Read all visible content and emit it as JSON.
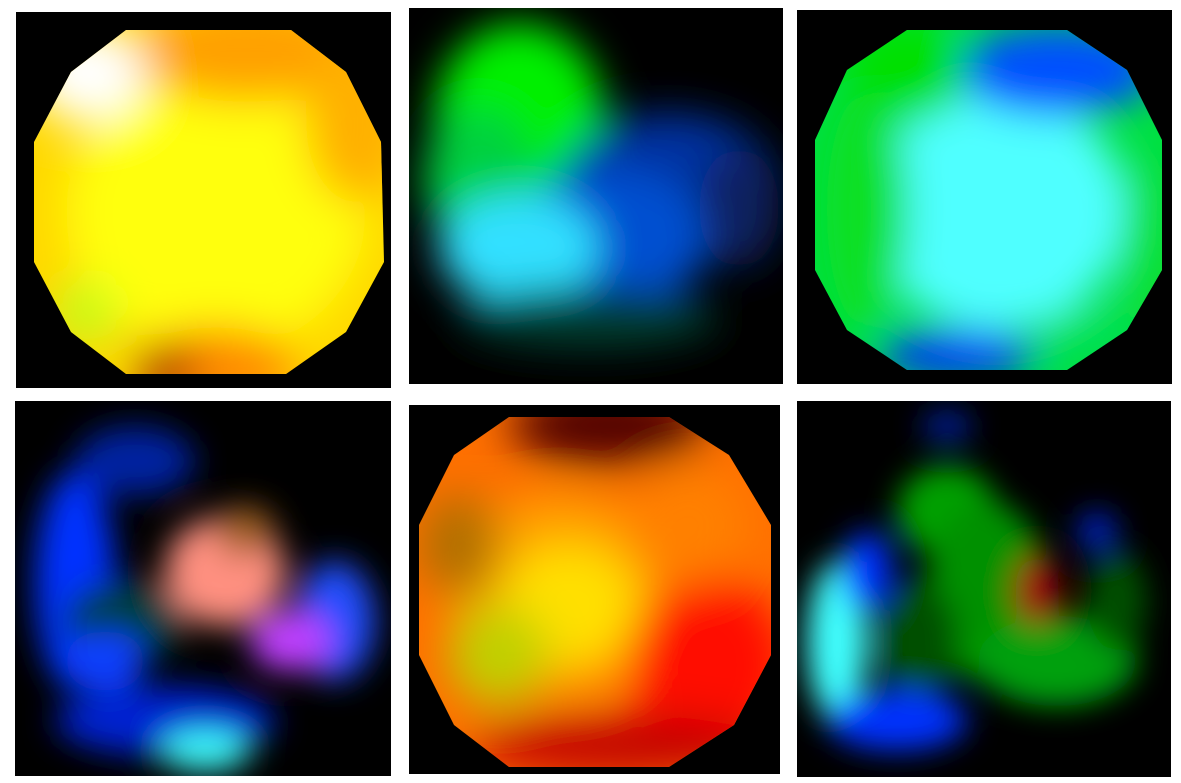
{
  "figure": {
    "background_color": "#ffffff",
    "panel_background": "#000000",
    "panels": [
      {
        "id": "p1",
        "dominant_colors": [
          "#ffff00",
          "#ffa000",
          "#ffffff"
        ]
      },
      {
        "id": "p2",
        "dominant_colors": [
          "#00ff00",
          "#0040c0",
          "#30d0ff"
        ]
      },
      {
        "id": "p3",
        "dominant_colors": [
          "#00ff00",
          "#40ffff",
          "#0030ff"
        ]
      },
      {
        "id": "p4",
        "dominant_colors": [
          "#0030ff",
          "#ff8080",
          "#c040ff",
          "#40ffff"
        ]
      },
      {
        "id": "p5",
        "dominant_colors": [
          "#ff9000",
          "#ffd000",
          "#ff0000"
        ]
      },
      {
        "id": "p6",
        "dominant_colors": [
          "#00a000",
          "#40ffff",
          "#0030ff",
          "#a00000"
        ]
      }
    ]
  }
}
